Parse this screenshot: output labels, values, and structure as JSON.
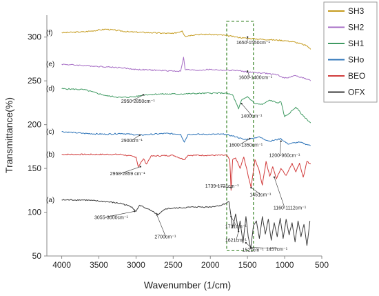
{
  "chart_data": {
    "type": "line",
    "xlabel": "Wavenumber (1/cm)",
    "ylabel": "Transmittance(%)",
    "xlim": [
      4200,
      500
    ],
    "ylim": [
      50,
      325
    ],
    "x_ticks": [
      4000,
      3500,
      3000,
      2500,
      2000,
      1500,
      1000,
      500
    ],
    "y_ticks": [
      50,
      100,
      150,
      200,
      250,
      300
    ],
    "grid": false,
    "legend_position": "right",
    "series": [
      {
        "name": "SH3",
        "panel": "(f)",
        "color": "#c59b1e",
        "points": [
          [
            4000,
            305
          ],
          [
            3700,
            306
          ],
          [
            3400,
            309
          ],
          [
            3100,
            306
          ],
          [
            2800,
            305
          ],
          [
            2500,
            304
          ],
          [
            2380,
            307
          ],
          [
            2340,
            301
          ],
          [
            2200,
            303
          ],
          [
            2000,
            303
          ],
          [
            1800,
            302
          ],
          [
            1650,
            300
          ],
          [
            1550,
            299
          ],
          [
            1400,
            298
          ],
          [
            1200,
            297
          ],
          [
            1000,
            296
          ],
          [
            850,
            294
          ],
          [
            700,
            290
          ],
          [
            650,
            286
          ]
        ]
      },
      {
        "name": "SH2",
        "panel": "(e)",
        "color": "#a56bc4",
        "points": [
          [
            4000,
            269
          ],
          [
            3800,
            268
          ],
          [
            3600,
            267
          ],
          [
            3400,
            266
          ],
          [
            3200,
            265
          ],
          [
            3000,
            263
          ],
          [
            2700,
            262
          ],
          [
            2400,
            261
          ],
          [
            2360,
            277
          ],
          [
            2340,
            263
          ],
          [
            2200,
            262
          ],
          [
            2000,
            263
          ],
          [
            1800,
            262
          ],
          [
            1650,
            262
          ],
          [
            1500,
            260
          ],
          [
            1300,
            259
          ],
          [
            1100,
            257
          ],
          [
            1000,
            253
          ],
          [
            850,
            256
          ],
          [
            700,
            252
          ],
          [
            650,
            250
          ]
        ]
      },
      {
        "name": "SH1",
        "panel": "(d)",
        "color": "#3f9a62",
        "points": [
          [
            4000,
            241
          ],
          [
            3700,
            240
          ],
          [
            3400,
            233
          ],
          [
            3200,
            231
          ],
          [
            3000,
            232
          ],
          [
            2900,
            234
          ],
          [
            2700,
            235
          ],
          [
            2400,
            235
          ],
          [
            2000,
            236
          ],
          [
            1800,
            236
          ],
          [
            1700,
            234
          ],
          [
            1620,
            218
          ],
          [
            1580,
            228
          ],
          [
            1500,
            232
          ],
          [
            1400,
            224
          ],
          [
            1300,
            223
          ],
          [
            1200,
            228
          ],
          [
            1100,
            225
          ],
          [
            1050,
            226
          ],
          [
            1000,
            209
          ],
          [
            950,
            212
          ],
          [
            850,
            220
          ],
          [
            750,
            210
          ],
          [
            650,
            202
          ]
        ]
      },
      {
        "name": "SHo",
        "panel": "(c)",
        "color": "#2c73b8",
        "points": [
          [
            4000,
            192
          ],
          [
            3700,
            190
          ],
          [
            3400,
            189
          ],
          [
            3200,
            190
          ],
          [
            2950,
            188
          ],
          [
            2600,
            190
          ],
          [
            2400,
            189
          ],
          [
            2350,
            180
          ],
          [
            2300,
            189
          ],
          [
            2000,
            189
          ],
          [
            1800,
            189
          ],
          [
            1650,
            186
          ],
          [
            1550,
            183
          ],
          [
            1450,
            184
          ],
          [
            1350,
            186
          ],
          [
            1200,
            181
          ],
          [
            1050,
            184
          ],
          [
            960,
            178
          ],
          [
            800,
            180
          ],
          [
            650,
            176
          ]
        ]
      },
      {
        "name": "BEO",
        "panel": "(b)",
        "color": "#d13b3b",
        "points": [
          [
            4000,
            166
          ],
          [
            3500,
            166
          ],
          [
            3200,
            166
          ],
          [
            3000,
            163
          ],
          [
            2970,
            152
          ],
          [
            2900,
            161
          ],
          [
            2859,
            155
          ],
          [
            2800,
            164
          ],
          [
            2500,
            165
          ],
          [
            2350,
            160
          ],
          [
            2300,
            165
          ],
          [
            2000,
            165
          ],
          [
            1780,
            165
          ],
          [
            1739,
            160
          ],
          [
            1721,
            125
          ],
          [
            1700,
            160
          ],
          [
            1660,
            162
          ],
          [
            1600,
            150
          ],
          [
            1550,
            163
          ],
          [
            1451,
            128
          ],
          [
            1400,
            160
          ],
          [
            1350,
            150
          ],
          [
            1300,
            131
          ],
          [
            1250,
            158
          ],
          [
            1200,
            141
          ],
          [
            1160,
            152
          ],
          [
            1112,
            138
          ],
          [
            1050,
            150
          ],
          [
            980,
            142
          ],
          [
            900,
            156
          ],
          [
            850,
            146
          ],
          [
            800,
            156
          ],
          [
            750,
            140
          ],
          [
            700,
            158
          ],
          [
            650,
            155
          ]
        ]
      },
      {
        "name": "OFX",
        "panel": "(a)",
        "color": "#3a3a3a",
        "points": [
          [
            4000,
            114
          ],
          [
            3700,
            114
          ],
          [
            3400,
            112
          ],
          [
            3200,
            110
          ],
          [
            3055,
            106
          ],
          [
            3000,
            101
          ],
          [
            2950,
            108
          ],
          [
            2850,
            104
          ],
          [
            2700,
            97
          ],
          [
            2600,
            104
          ],
          [
            2400,
            105
          ],
          [
            2200,
            106
          ],
          [
            2000,
            106
          ],
          [
            1850,
            108
          ],
          [
            1750,
            112
          ],
          [
            1721,
            95
          ],
          [
            1700,
            82
          ],
          [
            1660,
            98
          ],
          [
            1621,
            78
          ],
          [
            1600,
            90
          ],
          [
            1560,
            65
          ],
          [
            1521,
            95
          ],
          [
            1490,
            72
          ],
          [
            1457,
            58
          ],
          [
            1420,
            85
          ],
          [
            1380,
            90
          ],
          [
            1340,
            70
          ],
          [
            1300,
            95
          ],
          [
            1260,
            75
          ],
          [
            1220,
            92
          ],
          [
            1180,
            68
          ],
          [
            1140,
            88
          ],
          [
            1100,
            72
          ],
          [
            1060,
            93
          ],
          [
            1020,
            70
          ],
          [
            980,
            92
          ],
          [
            940,
            74
          ],
          [
            900,
            88
          ],
          [
            860,
            66
          ],
          [
            820,
            90
          ],
          [
            780,
            72
          ],
          [
            740,
            86
          ],
          [
            700,
            62
          ],
          [
            660,
            90
          ]
        ]
      }
    ],
    "annotations": [
      {
        "text": "1650-1550cm⁻¹",
        "x": 1500,
        "y": 300,
        "tx": 1650,
        "ty": 292
      },
      {
        "text": "1600-1400cm⁻¹",
        "x": 1500,
        "y": 261,
        "tx": 1620,
        "ty": 252
      },
      {
        "text": "2950-2850cm⁻¹",
        "x": 2900,
        "y": 234,
        "tx": 3200,
        "ty": 225
      },
      {
        "text": "1400cm⁻¹",
        "x": 1580,
        "y": 224,
        "tx": 1590,
        "ty": 208
      },
      {
        "text": "2900cm⁻¹",
        "x": 2950,
        "y": 188,
        "tx": 3200,
        "ty": 180
      },
      {
        "text": "1600-1350cm⁻¹",
        "x": 1470,
        "y": 184,
        "tx": 1750,
        "ty": 175
      },
      {
        "text": "1200-960cm⁻¹",
        "x": 1050,
        "y": 181,
        "tx": 1210,
        "ty": 163
      },
      {
        "text": "2968-2859 cm⁻¹",
        "x": 2940,
        "y": 152,
        "tx": 3350,
        "ty": 142
      },
      {
        "text": "1739-1721cm⁻¹",
        "x": 1720,
        "y": 128,
        "tx": 2070,
        "ty": 128
      },
      {
        "text": "1451cm⁻¹",
        "x": 1451,
        "y": 128,
        "tx": 1470,
        "ty": 118
      },
      {
        "text": "1160-1112cm⁻¹",
        "x": 1140,
        "y": 140,
        "tx": 1150,
        "ty": 103
      },
      {
        "text": "3055-3000cm⁻¹",
        "x": 3020,
        "y": 101,
        "tx": 3560,
        "ty": 92
      },
      {
        "text": "2700cm⁻¹",
        "x": 2720,
        "y": 97,
        "tx": 2750,
        "ty": 70
      },
      {
        "text": "1721cm⁻¹",
        "x": 1721,
        "y": 95,
        "tx": 1800,
        "ty": 82
      },
      {
        "text": "1621cm⁻¹",
        "x": 1621,
        "y": 78,
        "tx": 1800,
        "ty": 66
      },
      {
        "text": "1521cm⁻¹",
        "x": 1521,
        "y": 65,
        "tx": 1570,
        "ty": 55
      },
      {
        "text": "1457cm⁻¹",
        "x": 1457,
        "y": 60,
        "tx": 1250,
        "ty": 56
      }
    ],
    "highlight_box": {
      "x1": 1780,
      "x2": 1420,
      "y1": 56,
      "y2": 318,
      "color": "#4a8f3a"
    }
  }
}
